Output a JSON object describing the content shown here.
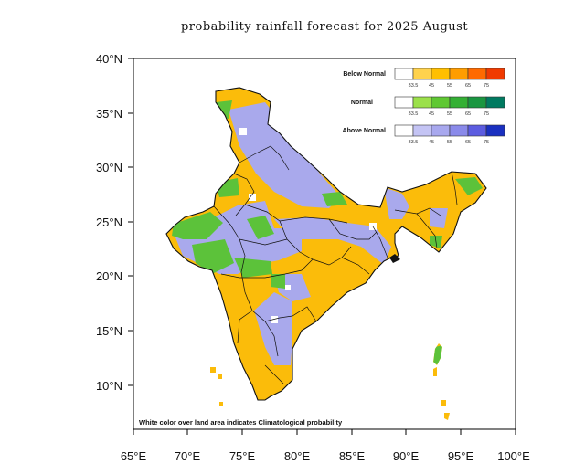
{
  "title": "probability rainfall forecast for 2025 August",
  "axes": {
    "x_labels": [
      "65°E",
      "70°E",
      "75°E",
      "80°E",
      "85°E",
      "90°E",
      "95°E",
      "100°E"
    ],
    "y_labels": [
      "40°N",
      "35°N",
      "30°N",
      "25°N",
      "20°N",
      "15°N",
      "10°N"
    ],
    "x_range_deg": [
      65,
      100
    ],
    "y_range_deg": [
      6,
      40
    ]
  },
  "legend": {
    "thresholds": [
      "33.5",
      "45",
      "55",
      "65",
      "75"
    ],
    "categories": [
      {
        "name": "Below Normal",
        "colors": [
          "#ffffff",
          "#ffd24d",
          "#ffbf00",
          "#ff9d00",
          "#ff6a00",
          "#f03a00"
        ]
      },
      {
        "name": "Normal",
        "colors": [
          "#ffffff",
          "#9be04a",
          "#5fc832",
          "#34b034",
          "#1a9640",
          "#007a60"
        ]
      },
      {
        "name": "Above Normal",
        "colors": [
          "#ffffff",
          "#c4c4f4",
          "#a8a8ee",
          "#8a8aea",
          "#5c5ce0",
          "#1a30c0"
        ]
      }
    ]
  },
  "note": "White color over land area indicates Climatological probability",
  "colors": {
    "below_normal": "#fbbc0a",
    "normal": "#5cc23a",
    "above_normal": "#a9a9ec",
    "climatological": "#ffffff",
    "boundary": "#111111"
  }
}
